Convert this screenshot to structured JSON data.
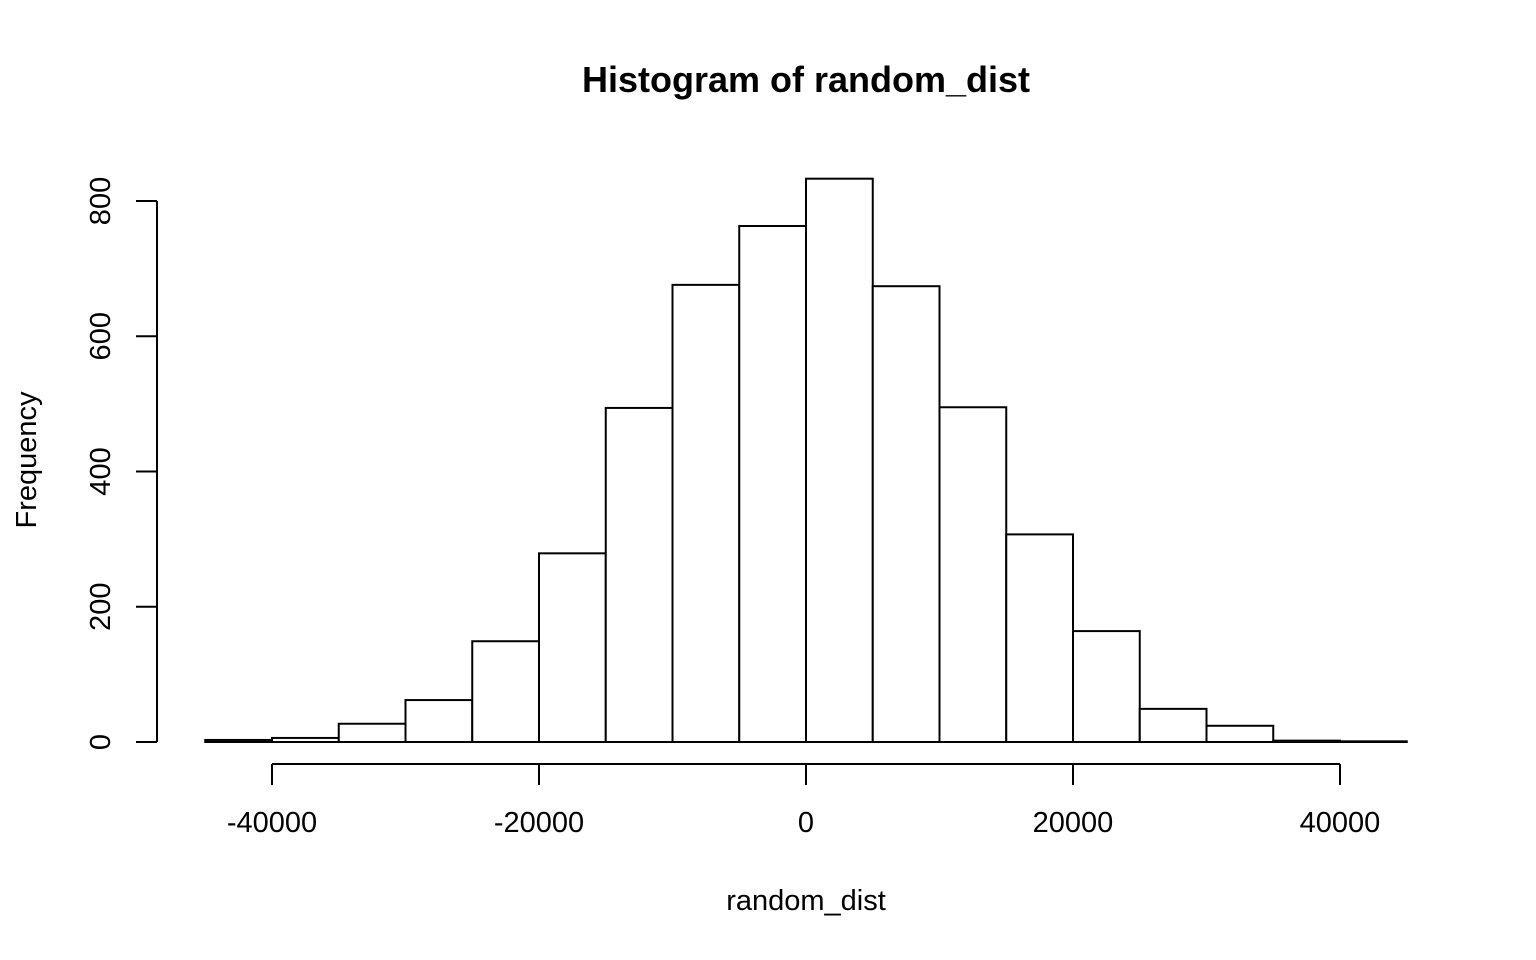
{
  "chart_data": {
    "type": "bar",
    "title": "Histogram of random_dist",
    "xlabel": "random_dist",
    "ylabel": "Frequency",
    "bins": [
      {
        "start": -45000,
        "end": -40000,
        "count": 3
      },
      {
        "start": -40000,
        "end": -35000,
        "count": 6
      },
      {
        "start": -35000,
        "end": -30000,
        "count": 27
      },
      {
        "start": -30000,
        "end": -25000,
        "count": 62
      },
      {
        "start": -25000,
        "end": -20000,
        "count": 149
      },
      {
        "start": -20000,
        "end": -15000,
        "count": 279
      },
      {
        "start": -15000,
        "end": -10000,
        "count": 494
      },
      {
        "start": -10000,
        "end": -5000,
        "count": 676
      },
      {
        "start": -5000,
        "end": 0,
        "count": 763
      },
      {
        "start": 0,
        "end": 5000,
        "count": 833
      },
      {
        "start": 5000,
        "end": 10000,
        "count": 674
      },
      {
        "start": 10000,
        "end": 15000,
        "count": 495
      },
      {
        "start": 15000,
        "end": 20000,
        "count": 307
      },
      {
        "start": 20000,
        "end": 25000,
        "count": 164
      },
      {
        "start": 25000,
        "end": 30000,
        "count": 49
      },
      {
        "start": 30000,
        "end": 35000,
        "count": 24
      },
      {
        "start": 35000,
        "end": 40000,
        "count": 2
      },
      {
        "start": 40000,
        "end": 45000,
        "count": 1
      }
    ],
    "xlim": [
      -45000,
      45000
    ],
    "ylim": [
      0,
      833
    ],
    "x_ticks": [
      -40000,
      -20000,
      0,
      20000,
      40000
    ],
    "x_tick_labels": [
      "-40000",
      "-20000",
      "0",
      "20000",
      "40000"
    ],
    "y_ticks": [
      0,
      200,
      400,
      600,
      800
    ],
    "y_tick_labels": [
      "0",
      "200",
      "400",
      "600",
      "800"
    ],
    "grid": false,
    "bar_fill": "#ffffff",
    "bar_stroke": "#000000"
  }
}
